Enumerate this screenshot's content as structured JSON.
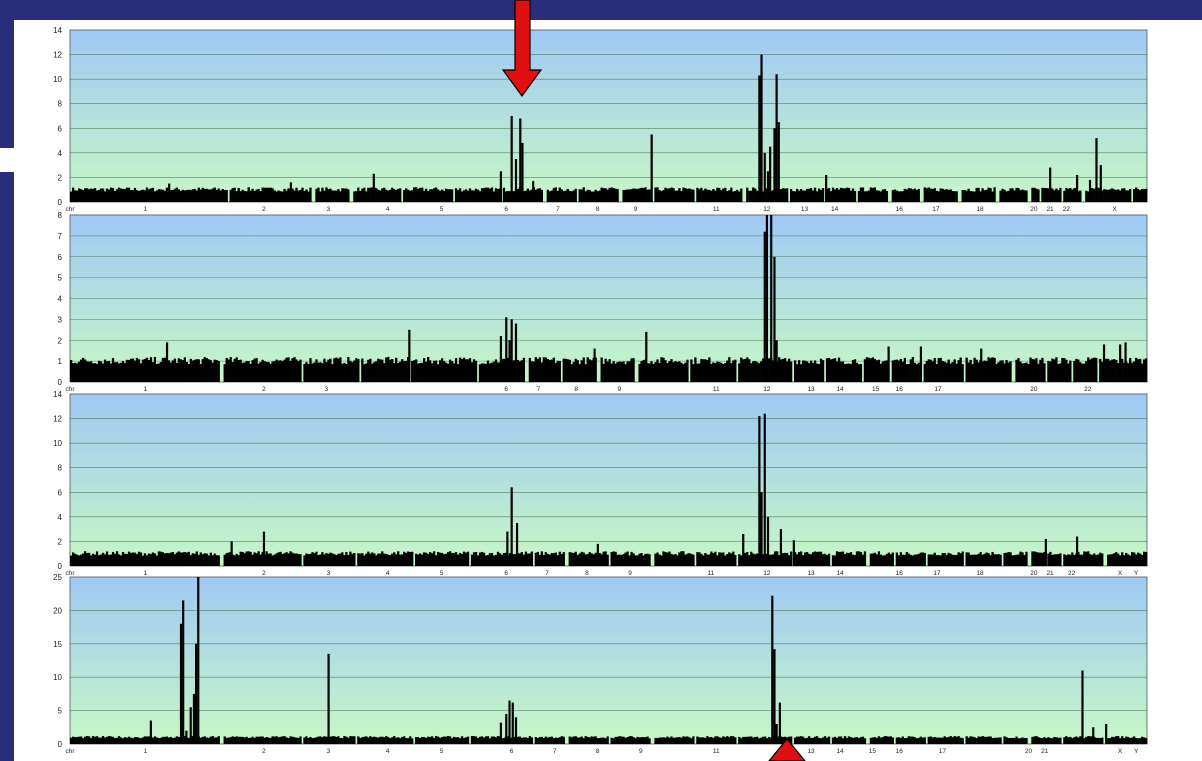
{
  "colors": {
    "slide_background": "#2a2e7a",
    "plot_top": "#9fc9f4",
    "plot_bottom": "#c7f7c7",
    "bars": "#000000",
    "arrow": "#e01010",
    "gridlines": "#2f5a2f"
  },
  "chart_data": [
    {
      "type": "bar",
      "title": "",
      "ylim": [
        0,
        14
      ],
      "yticks": [
        "0",
        "2",
        "4",
        "6",
        "8",
        "10",
        "12",
        "14"
      ],
      "grid": true,
      "xticks": [
        {
          "label": "chr",
          "pos": 0.0
        },
        {
          "label": "1",
          "pos": 0.07
        },
        {
          "label": "2",
          "pos": 0.18
        },
        {
          "label": "3",
          "pos": 0.24
        },
        {
          "label": "4",
          "pos": 0.295
        },
        {
          "label": "5",
          "pos": 0.345
        },
        {
          "label": "6",
          "pos": 0.405
        },
        {
          "label": "7",
          "pos": 0.453
        },
        {
          "label": "8",
          "pos": 0.49
        },
        {
          "label": "9",
          "pos": 0.525
        },
        {
          "label": "11",
          "pos": 0.6
        },
        {
          "label": "12",
          "pos": 0.647
        },
        {
          "label": "13",
          "pos": 0.682
        },
        {
          "label": "14",
          "pos": 0.71
        },
        {
          "label": "16",
          "pos": 0.77
        },
        {
          "label": "17",
          "pos": 0.804
        },
        {
          "label": "18",
          "pos": 0.845
        },
        {
          "label": "20",
          "pos": 0.895
        },
        {
          "label": "21",
          "pos": 0.91
        },
        {
          "label": "22",
          "pos": 0.925
        },
        {
          "label": "X",
          "pos": 0.97
        }
      ],
      "peaks": [
        {
          "x": 0.092,
          "value": 1.5
        },
        {
          "x": 0.205,
          "value": 1.6
        },
        {
          "x": 0.282,
          "value": 2.3
        },
        {
          "x": 0.4,
          "value": 2.5
        },
        {
          "x": 0.41,
          "value": 7.0
        },
        {
          "x": 0.414,
          "value": 3.5
        },
        {
          "x": 0.418,
          "value": 6.8
        },
        {
          "x": 0.42,
          "value": 4.8
        },
        {
          "x": 0.43,
          "value": 1.7
        },
        {
          "x": 0.54,
          "value": 5.5
        },
        {
          "x": 0.64,
          "value": 10.3
        },
        {
          "x": 0.642,
          "value": 12.0
        },
        {
          "x": 0.645,
          "value": 4.0
        },
        {
          "x": 0.648,
          "value": 2.5
        },
        {
          "x": 0.65,
          "value": 4.5
        },
        {
          "x": 0.654,
          "value": 6.0
        },
        {
          "x": 0.656,
          "value": 10.4
        },
        {
          "x": 0.658,
          "value": 6.5
        },
        {
          "x": 0.702,
          "value": 2.2
        },
        {
          "x": 0.91,
          "value": 2.8
        },
        {
          "x": 0.935,
          "value": 2.2
        },
        {
          "x": 0.947,
          "value": 1.8
        },
        {
          "x": 0.953,
          "value": 5.2
        },
        {
          "x": 0.957,
          "value": 3.0
        }
      ],
      "gaps": [
        0.146,
        0.225,
        0.26,
        0.308,
        0.355,
        0.4,
        0.44,
        0.47,
        0.51,
        0.54,
        0.58,
        0.625,
        0.667,
        0.7,
        0.73,
        0.76,
        0.79,
        0.825,
        0.86,
        0.89,
        0.9,
        0.92,
        0.94,
        0.985
      ]
    },
    {
      "type": "bar",
      "title": "",
      "ylim": [
        0,
        8
      ],
      "yticks": [
        "0",
        "1",
        "2",
        "3",
        "4",
        "5",
        "6",
        "7",
        "8"
      ],
      "grid": true,
      "xticks": [
        {
          "label": "chr",
          "pos": 0.0
        },
        {
          "label": "1",
          "pos": 0.07
        },
        {
          "label": "2",
          "pos": 0.18
        },
        {
          "label": "3",
          "pos": 0.238
        },
        {
          "label": "6",
          "pos": 0.405
        },
        {
          "label": "7",
          "pos": 0.435
        },
        {
          "label": "8",
          "pos": 0.47
        },
        {
          "label": "9",
          "pos": 0.51
        },
        {
          "label": "11",
          "pos": 0.6
        },
        {
          "label": "12",
          "pos": 0.647
        },
        {
          "label": "13",
          "pos": 0.688
        },
        {
          "label": "14",
          "pos": 0.715
        },
        {
          "label": "15",
          "pos": 0.748
        },
        {
          "label": "16",
          "pos": 0.77
        },
        {
          "label": "17",
          "pos": 0.806
        },
        {
          "label": "20",
          "pos": 0.895
        },
        {
          "label": "22",
          "pos": 0.945
        }
      ],
      "peaks": [
        {
          "x": 0.09,
          "value": 1.9
        },
        {
          "x": 0.315,
          "value": 2.5
        },
        {
          "x": 0.4,
          "value": 2.2
        },
        {
          "x": 0.405,
          "value": 3.1
        },
        {
          "x": 0.408,
          "value": 2.0
        },
        {
          "x": 0.41,
          "value": 3.0
        },
        {
          "x": 0.414,
          "value": 2.8
        },
        {
          "x": 0.487,
          "value": 1.6
        },
        {
          "x": 0.535,
          "value": 2.4
        },
        {
          "x": 0.645,
          "value": 7.2
        },
        {
          "x": 0.647,
          "value": 8.0
        },
        {
          "x": 0.651,
          "value": 8.0
        },
        {
          "x": 0.654,
          "value": 6.0
        },
        {
          "x": 0.656,
          "value": 2.0
        },
        {
          "x": 0.76,
          "value": 1.7
        },
        {
          "x": 0.79,
          "value": 1.7
        },
        {
          "x": 0.846,
          "value": 1.6
        },
        {
          "x": 0.96,
          "value": 1.8
        },
        {
          "x": 0.975,
          "value": 1.8
        },
        {
          "x": 0.98,
          "value": 1.9
        }
      ],
      "gaps": [
        0.14,
        0.215,
        0.268,
        0.315,
        0.378,
        0.423,
        0.455,
        0.49,
        0.525,
        0.574,
        0.618,
        0.67,
        0.7,
        0.735,
        0.76,
        0.79,
        0.83,
        0.875,
        0.905,
        0.93,
        0.954
      ]
    },
    {
      "type": "bar",
      "title": "",
      "ylim": [
        0,
        14
      ],
      "yticks": [
        "0",
        "2",
        "4",
        "6",
        "8",
        "10",
        "12",
        "14"
      ],
      "grid": true,
      "xticks": [
        {
          "label": "chr",
          "pos": 0.0
        },
        {
          "label": "1",
          "pos": 0.07
        },
        {
          "label": "2",
          "pos": 0.18
        },
        {
          "label": "3",
          "pos": 0.24
        },
        {
          "label": "4",
          "pos": 0.295
        },
        {
          "label": "5",
          "pos": 0.345
        },
        {
          "label": "6",
          "pos": 0.405
        },
        {
          "label": "7",
          "pos": 0.443
        },
        {
          "label": "8",
          "pos": 0.48
        },
        {
          "label": "9",
          "pos": 0.52
        },
        {
          "label": "11",
          "pos": 0.595
        },
        {
          "label": "12",
          "pos": 0.647
        },
        {
          "label": "13",
          "pos": 0.688
        },
        {
          "label": "14",
          "pos": 0.715
        },
        {
          "label": "16",
          "pos": 0.77
        },
        {
          "label": "17",
          "pos": 0.805
        },
        {
          "label": "18",
          "pos": 0.845
        },
        {
          "label": "20",
          "pos": 0.895
        },
        {
          "label": "21",
          "pos": 0.91
        },
        {
          "label": "22",
          "pos": 0.93
        },
        {
          "label": "X",
          "pos": 0.975
        },
        {
          "label": "Y",
          "pos": 0.99
        }
      ],
      "peaks": [
        {
          "x": 0.15,
          "value": 2.0
        },
        {
          "x": 0.18,
          "value": 2.8
        },
        {
          "x": 0.406,
          "value": 2.8
        },
        {
          "x": 0.41,
          "value": 6.4
        },
        {
          "x": 0.415,
          "value": 3.5
        },
        {
          "x": 0.49,
          "value": 1.8
        },
        {
          "x": 0.625,
          "value": 2.6
        },
        {
          "x": 0.64,
          "value": 12.2
        },
        {
          "x": 0.642,
          "value": 6.0
        },
        {
          "x": 0.645,
          "value": 12.4
        },
        {
          "x": 0.648,
          "value": 4.0
        },
        {
          "x": 0.66,
          "value": 3.0
        },
        {
          "x": 0.672,
          "value": 2.1
        },
        {
          "x": 0.906,
          "value": 2.2
        },
        {
          "x": 0.935,
          "value": 2.4
        }
      ],
      "gaps": [
        0.14,
        0.215,
        0.265,
        0.318,
        0.37,
        0.43,
        0.46,
        0.5,
        0.54,
        0.58,
        0.618,
        0.67,
        0.705,
        0.74,
        0.765,
        0.795,
        0.83,
        0.865,
        0.89,
        0.905,
        0.92,
        0.96
      ]
    },
    {
      "type": "bar",
      "title": "",
      "ylim": [
        0,
        25
      ],
      "yticks": [
        "0",
        "5",
        "10",
        "15",
        "20",
        "25"
      ],
      "grid": true,
      "xticks": [
        {
          "label": "chr",
          "pos": 0.0
        },
        {
          "label": "1",
          "pos": 0.07
        },
        {
          "label": "2",
          "pos": 0.18
        },
        {
          "label": "3",
          "pos": 0.24
        },
        {
          "label": "4",
          "pos": 0.295
        },
        {
          "label": "5",
          "pos": 0.345
        },
        {
          "label": "6",
          "pos": 0.41
        },
        {
          "label": "7",
          "pos": 0.45
        },
        {
          "label": "8",
          "pos": 0.49
        },
        {
          "label": "9",
          "pos": 0.53
        },
        {
          "label": "11",
          "pos": 0.6
        },
        {
          "label": "13",
          "pos": 0.688
        },
        {
          "label": "14",
          "pos": 0.715
        },
        {
          "label": "15",
          "pos": 0.745
        },
        {
          "label": "16",
          "pos": 0.77
        },
        {
          "label": "17",
          "pos": 0.81
        },
        {
          "label": "20",
          "pos": 0.89
        },
        {
          "label": "21",
          "pos": 0.905
        },
        {
          "label": "X",
          "pos": 0.975
        },
        {
          "label": "Y",
          "pos": 0.99
        }
      ],
      "peaks": [
        {
          "x": 0.075,
          "value": 3.5
        },
        {
          "x": 0.103,
          "value": 18.0
        },
        {
          "x": 0.105,
          "value": 21.5
        },
        {
          "x": 0.108,
          "value": 2.0
        },
        {
          "x": 0.112,
          "value": 5.5
        },
        {
          "x": 0.115,
          "value": 7.5
        },
        {
          "x": 0.117,
          "value": 15.0
        },
        {
          "x": 0.119,
          "value": 25.0
        },
        {
          "x": 0.24,
          "value": 13.5
        },
        {
          "x": 0.4,
          "value": 3.2
        },
        {
          "x": 0.405,
          "value": 4.5
        },
        {
          "x": 0.408,
          "value": 6.5
        },
        {
          "x": 0.411,
          "value": 6.2
        },
        {
          "x": 0.414,
          "value": 4.0
        },
        {
          "x": 0.652,
          "value": 22.2
        },
        {
          "x": 0.654,
          "value": 14.2
        },
        {
          "x": 0.656,
          "value": 3.0
        },
        {
          "x": 0.659,
          "value": 6.2
        },
        {
          "x": 0.94,
          "value": 11.0
        },
        {
          "x": 0.95,
          "value": 2.5
        },
        {
          "x": 0.962,
          "value": 3.0
        }
      ],
      "gaps": [
        0.14,
        0.215,
        0.265,
        0.318,
        0.37,
        0.43,
        0.46,
        0.5,
        0.54,
        0.58,
        0.618,
        0.67,
        0.705,
        0.74,
        0.765,
        0.795,
        0.83,
        0.865,
        0.89,
        0.92,
        0.96
      ]
    }
  ]
}
